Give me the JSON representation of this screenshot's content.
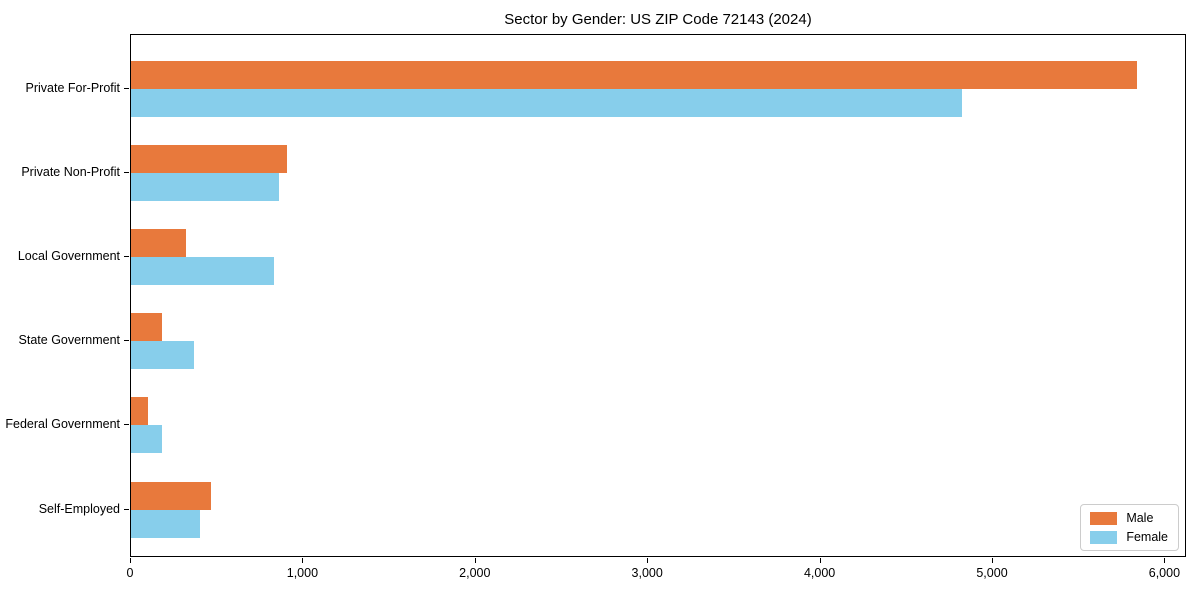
{
  "chart_data": {
    "type": "bar",
    "orientation": "horizontal",
    "title": "Sector by Gender: US ZIP Code 72143 (2024)",
    "categories": [
      "Private For-Profit",
      "Private Non-Profit",
      "Local Government",
      "State Government",
      "Federal Government",
      "Self-Employed"
    ],
    "series": [
      {
        "name": "Male",
        "color": "#E8793C",
        "values": [
          5835,
          905,
          318,
          180,
          100,
          465
        ]
      },
      {
        "name": "Female",
        "color": "#87CEEB",
        "values": [
          4820,
          858,
          828,
          367,
          180,
          402
        ]
      }
    ],
    "xlabel": "",
    "ylabel": "",
    "xlim": [
      0,
      6125
    ],
    "xticks": [
      0,
      1000,
      2000,
      3000,
      4000,
      5000,
      6000
    ],
    "xtick_labels": [
      "0",
      "1,000",
      "2,000",
      "3,000",
      "4,000",
      "5,000",
      "6,000"
    ],
    "grid": false,
    "legend": {
      "position": "lower right"
    }
  }
}
